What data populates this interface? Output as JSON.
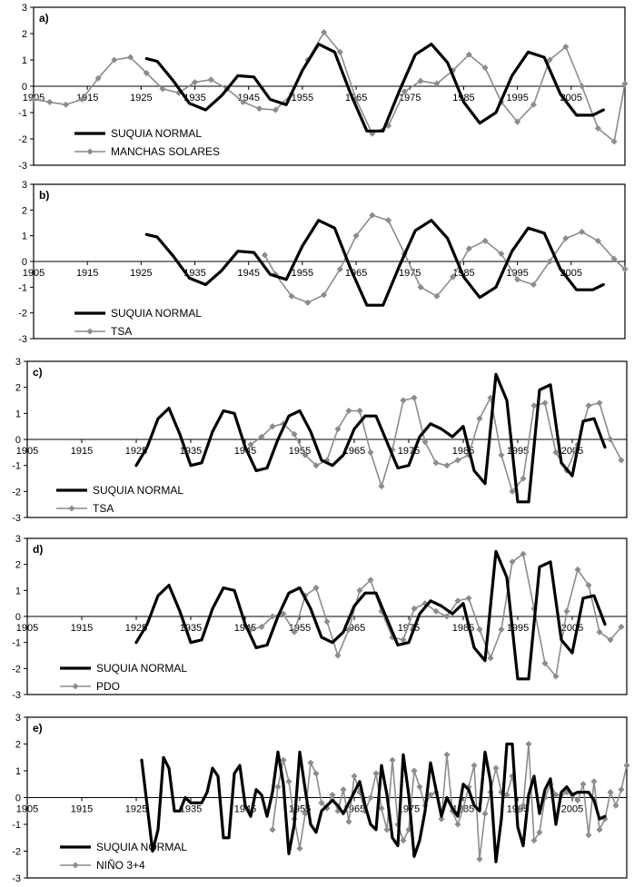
{
  "chart_data": [
    {
      "type": "line",
      "panel_label": "a)",
      "xlim": [
        1905,
        2015
      ],
      "ylim": [
        -3,
        3
      ],
      "yticks": [
        -3,
        -2,
        -1,
        0,
        1,
        2,
        3
      ],
      "xticks": [
        1905,
        1915,
        1925,
        1935,
        1945,
        1955,
        1965,
        1975,
        1985,
        1995,
        2005
      ],
      "legend_position": "bottom-left",
      "series": [
        {
          "name": "SUQUIA NORMAL",
          "style": "thick",
          "color": "#000000",
          "x": [
            1926,
            1928,
            1931,
            1934,
            1937,
            1940,
            1943,
            1946,
            1949,
            1952,
            1955,
            1958,
            1961,
            1964,
            1967,
            1970,
            1973,
            1976,
            1979,
            1982,
            1985,
            1988,
            1991,
            1994,
            1997,
            2000,
            2003,
            2006,
            2009,
            2011
          ],
          "y": [
            1.05,
            0.95,
            0.2,
            -0.65,
            -0.9,
            -0.35,
            0.4,
            0.35,
            -0.5,
            -0.7,
            0.6,
            1.6,
            1.3,
            -0.3,
            -1.7,
            -1.7,
            -0.2,
            1.2,
            1.6,
            0.9,
            -0.6,
            -1.4,
            -1.0,
            0.4,
            1.3,
            1.1,
            -0.3,
            -1.1,
            -1.1,
            -0.9
          ]
        },
        {
          "name": "MANCHAS SOLARES",
          "style": "marker",
          "color": "#8c8c8c",
          "x": [
            1905,
            1908,
            1911,
            1914,
            1917,
            1920,
            1923,
            1926,
            1929,
            1932,
            1935,
            1938,
            1941,
            1944,
            1947,
            1950,
            1953,
            1956,
            1959,
            1962,
            1965,
            1968,
            1971,
            1974,
            1977,
            1980,
            1983,
            1986,
            1989,
            1992,
            1995,
            1998,
            2001,
            2004,
            2007,
            2010,
            2013,
            2015
          ],
          "y": [
            -0.5,
            -0.6,
            -0.7,
            -0.5,
            0.3,
            1.0,
            1.1,
            0.5,
            -0.1,
            -0.25,
            0.15,
            0.25,
            -0.1,
            -0.6,
            -0.85,
            -0.9,
            -0.3,
            1.0,
            2.05,
            1.3,
            -0.5,
            -1.8,
            -1.5,
            -0.2,
            0.2,
            0.1,
            0.6,
            1.2,
            0.7,
            -0.6,
            -1.35,
            -0.7,
            1.0,
            1.5,
            0.0,
            -1.6,
            -2.1,
            0.1
          ]
        }
      ]
    },
    {
      "type": "line",
      "panel_label": "b)",
      "xlim": [
        1905,
        2015
      ],
      "ylim": [
        -3,
        3
      ],
      "yticks": [
        -3,
        -2,
        -1,
        0,
        1,
        2,
        3
      ],
      "xticks": [
        1905,
        1915,
        1925,
        1935,
        1945,
        1955,
        1965,
        1975,
        1985,
        1995,
        2005
      ],
      "legend_position": "bottom-left",
      "series": [
        {
          "name": "SUQUIA NORMAL",
          "style": "thick",
          "color": "#000000",
          "x": [
            1926,
            1928,
            1931,
            1934,
            1937,
            1940,
            1943,
            1946,
            1949,
            1952,
            1955,
            1958,
            1961,
            1964,
            1967,
            1970,
            1973,
            1976,
            1979,
            1982,
            1985,
            1988,
            1991,
            1994,
            1997,
            2000,
            2003,
            2006,
            2009,
            2011
          ],
          "y": [
            1.05,
            0.95,
            0.2,
            -0.65,
            -0.9,
            -0.35,
            0.4,
            0.35,
            -0.5,
            -0.7,
            0.6,
            1.6,
            1.3,
            -0.3,
            -1.7,
            -1.7,
            -0.2,
            1.2,
            1.6,
            0.9,
            -0.6,
            -1.4,
            -1.0,
            0.4,
            1.3,
            1.1,
            -0.3,
            -1.1,
            -1.1,
            -0.9
          ]
        },
        {
          "name": "TSA",
          "style": "marker",
          "color": "#8c8c8c",
          "x": [
            1948,
            1950,
            1953,
            1956,
            1959,
            1962,
            1965,
            1968,
            1971,
            1974,
            1977,
            1980,
            1983,
            1986,
            1989,
            1992,
            1995,
            1998,
            2001,
            2004,
            2007,
            2010,
            2013,
            2015
          ],
          "y": [
            0.25,
            -0.5,
            -1.35,
            -1.6,
            -1.3,
            -0.3,
            1.0,
            1.8,
            1.6,
            0.3,
            -1.0,
            -1.35,
            -0.6,
            0.5,
            0.8,
            0.3,
            -0.7,
            -0.9,
            0.0,
            0.9,
            1.15,
            0.8,
            0.1,
            -0.3
          ]
        }
      ]
    },
    {
      "type": "line",
      "panel_label": "c)",
      "xlim": [
        1905,
        2015
      ],
      "ylim": [
        -3,
        3
      ],
      "yticks": [
        -3,
        -2,
        -1,
        0,
        1,
        2,
        3
      ],
      "xticks": [
        1905,
        1915,
        1925,
        1935,
        1945,
        1955,
        1965,
        1975,
        1985,
        1995,
        2005
      ],
      "legend_position": "bottom-left",
      "series": [
        {
          "name": "SUQUIA NORMAL",
          "style": "thick",
          "color": "#000000",
          "x": [
            1925,
            1927,
            1929,
            1931,
            1933,
            1935,
            1937,
            1939,
            1941,
            1943,
            1945,
            1947,
            1949,
            1951,
            1953,
            1955,
            1957,
            1959,
            1961,
            1963,
            1965,
            1967,
            1969,
            1971,
            1973,
            1975,
            1977,
            1979,
            1981,
            1983,
            1985,
            1987,
            1989,
            1991,
            1993,
            1995,
            1997,
            1999,
            2001,
            2003,
            2005,
            2007,
            2009,
            2011
          ],
          "y": [
            -1.0,
            -0.3,
            0.8,
            1.2,
            0.2,
            -1.0,
            -0.9,
            0.3,
            1.1,
            1.0,
            -0.3,
            -1.2,
            -1.1,
            0.0,
            0.9,
            1.1,
            0.3,
            -0.8,
            -1.0,
            -0.6,
            0.4,
            0.9,
            0.9,
            -0.1,
            -1.1,
            -1.0,
            0.1,
            0.6,
            0.4,
            0.1,
            0.5,
            -1.2,
            -1.7,
            2.5,
            1.5,
            -2.4,
            -2.4,
            1.9,
            2.1,
            -0.9,
            -1.4,
            0.7,
            0.8,
            -0.3
          ]
        },
        {
          "name": "TSA",
          "style": "marker",
          "color": "#8c8c8c",
          "x": [
            1946,
            1948,
            1950,
            1952,
            1954,
            1956,
            1958,
            1960,
            1962,
            1964,
            1966,
            1968,
            1970,
            1972,
            1974,
            1976,
            1978,
            1980,
            1982,
            1984,
            1986,
            1988,
            1990,
            1992,
            1994,
            1996,
            1998,
            2000,
            2002,
            2004,
            2006,
            2008,
            2010,
            2012,
            2014
          ],
          "y": [
            -0.2,
            0.1,
            0.5,
            0.6,
            0.2,
            -0.6,
            -1.0,
            -0.8,
            0.4,
            1.1,
            1.1,
            -0.5,
            -1.8,
            -0.4,
            1.5,
            1.6,
            -0.1,
            -0.9,
            -1.0,
            -0.8,
            -0.6,
            0.8,
            1.6,
            -0.6,
            -2.0,
            -1.5,
            1.3,
            1.4,
            -0.5,
            -1.2,
            -0.2,
            1.3,
            1.4,
            0.0,
            -0.8
          ]
        }
      ]
    },
    {
      "type": "line",
      "panel_label": "d)",
      "xlim": [
        1905,
        2015
      ],
      "ylim": [
        -3,
        3
      ],
      "yticks": [
        -3,
        -2,
        -1,
        0,
        1,
        2,
        3
      ],
      "xticks": [
        1905,
        1915,
        1925,
        1935,
        1945,
        1955,
        1965,
        1975,
        1985,
        1995,
        2005
      ],
      "legend_position": "bottom-left",
      "series": [
        {
          "name": "SUQUIA NORMAL",
          "style": "thick",
          "color": "#000000",
          "x": [
            1925,
            1927,
            1929,
            1931,
            1933,
            1935,
            1937,
            1939,
            1941,
            1943,
            1945,
            1947,
            1949,
            1951,
            1953,
            1955,
            1957,
            1959,
            1961,
            1963,
            1965,
            1967,
            1969,
            1971,
            1973,
            1975,
            1977,
            1979,
            1981,
            1983,
            1985,
            1987,
            1989,
            1991,
            1993,
            1995,
            1997,
            1999,
            2001,
            2003,
            2005,
            2007,
            2009,
            2011
          ],
          "y": [
            -1.0,
            -0.3,
            0.8,
            1.2,
            0.2,
            -1.0,
            -0.9,
            0.3,
            1.1,
            1.0,
            -0.3,
            -1.2,
            -1.1,
            0.0,
            0.9,
            1.1,
            0.3,
            -0.8,
            -1.0,
            -0.6,
            0.4,
            0.9,
            0.9,
            -0.1,
            -1.1,
            -1.0,
            0.1,
            0.6,
            0.4,
            0.1,
            0.5,
            -1.2,
            -1.7,
            2.5,
            1.5,
            -2.4,
            -2.4,
            1.9,
            2.1,
            -0.9,
            -1.4,
            0.7,
            0.8,
            -0.3
          ]
        },
        {
          "name": "PDO",
          "style": "marker",
          "color": "#8c8c8c",
          "x": [
            1946,
            1948,
            1950,
            1952,
            1954,
            1956,
            1958,
            1960,
            1962,
            1964,
            1966,
            1968,
            1970,
            1972,
            1974,
            1976,
            1978,
            1980,
            1982,
            1984,
            1986,
            1988,
            1990,
            1992,
            1994,
            1996,
            1998,
            2000,
            2002,
            2004,
            2006,
            2008,
            2010,
            2012,
            2014
          ],
          "y": [
            -0.5,
            -0.4,
            0.0,
            0.1,
            -0.6,
            0.8,
            1.1,
            -0.2,
            -1.5,
            -0.5,
            1.0,
            1.4,
            0.2,
            -0.8,
            -0.9,
            0.3,
            0.5,
            0.2,
            0.0,
            0.6,
            0.7,
            -0.5,
            -1.6,
            -0.5,
            2.1,
            2.4,
            0.3,
            -1.8,
            -2.3,
            0.2,
            1.8,
            1.2,
            -0.6,
            -0.9,
            -0.4
          ]
        }
      ]
    },
    {
      "type": "line",
      "panel_label": "e)",
      "xlim": [
        1905,
        2015
      ],
      "ylim": [
        -3,
        3
      ],
      "yticks": [
        -3,
        -2,
        -1,
        0,
        1,
        2,
        3
      ],
      "xticks": [
        1905,
        1915,
        1925,
        1935,
        1945,
        1955,
        1965,
        1975,
        1985,
        1995,
        2005
      ],
      "legend_position": "bottom-left",
      "series": [
        {
          "name": "SUQUIA NORMAL",
          "style": "thick",
          "color": "#000000",
          "x": [
            1926,
            1927,
            1928,
            1929,
            1930,
            1931,
            1932,
            1933,
            1934,
            1935,
            1936,
            1937,
            1938,
            1939,
            1940,
            1941,
            1942,
            1943,
            1944,
            1945,
            1946,
            1947,
            1948,
            1949,
            1950,
            1951,
            1952,
            1953,
            1954,
            1955,
            1956,
            1957,
            1958,
            1959,
            1960,
            1961,
            1962,
            1963,
            1964,
            1965,
            1966,
            1967,
            1968,
            1969,
            1970,
            1971,
            1972,
            1973,
            1974,
            1975,
            1976,
            1977,
            1978,
            1979,
            1980,
            1981,
            1982,
            1983,
            1984,
            1985,
            1986,
            1987,
            1988,
            1989,
            1990,
            1991,
            1992,
            1993,
            1994,
            1995,
            1996,
            1997,
            1998,
            1999,
            2000,
            2001,
            2002,
            2003,
            2004,
            2005,
            2006,
            2007,
            2008,
            2009,
            2010,
            2011
          ],
          "y": [
            1.4,
            -0.3,
            -2.0,
            -1.2,
            1.5,
            1.1,
            -0.5,
            -0.5,
            0.0,
            -0.2,
            -0.2,
            -0.2,
            0.2,
            1.1,
            0.8,
            -1.5,
            -1.5,
            0.9,
            1.2,
            -0.3,
            -0.7,
            0.3,
            0.1,
            -0.7,
            0.2,
            1.7,
            0.5,
            -2.1,
            -1.0,
            1.7,
            0.3,
            -1.0,
            -1.3,
            -0.5,
            -0.3,
            -0.1,
            -0.3,
            -0.6,
            -0.2,
            0.2,
            0.6,
            -0.3,
            -1.0,
            -1.2,
            1.2,
            0.1,
            -1.5,
            -1.8,
            1.6,
            0.1,
            -2.2,
            -1.6,
            -0.5,
            1.3,
            0.3,
            -0.7,
            0.0,
            -0.4,
            -0.7,
            0.5,
            0.3,
            -0.3,
            -0.5,
            1.7,
            0.6,
            -2.4,
            -0.8,
            2.0,
            2.0,
            -1.1,
            -1.8,
            0.1,
            0.8,
            -0.6,
            0.3,
            0.7,
            -1.0,
            0.2,
            0.4,
            0.1,
            0.2,
            0.2,
            0.2,
            -0.1,
            -0.8,
            -0.7
          ]
        },
        {
          "name": "NIÑO 3+4",
          "style": "marker",
          "color": "#8c8c8c",
          "x": [
            1950,
            1951,
            1952,
            1953,
            1954,
            1955,
            1956,
            1957,
            1958,
            1959,
            1960,
            1961,
            1962,
            1963,
            1964,
            1965,
            1966,
            1967,
            1968,
            1969,
            1970,
            1971,
            1972,
            1973,
            1974,
            1975,
            1976,
            1977,
            1978,
            1979,
            1980,
            1981,
            1982,
            1983,
            1984,
            1985,
            1986,
            1987,
            1988,
            1989,
            1990,
            1991,
            1992,
            1993,
            1994,
            1995,
            1996,
            1997,
            1998,
            1999,
            2000,
            2001,
            2002,
            2003,
            2004,
            2005,
            2006,
            2007,
            2008,
            2009,
            2010,
            2011,
            2012,
            2013,
            2014,
            2015
          ],
          "y": [
            -1.2,
            0.4,
            1.4,
            0.6,
            -0.8,
            -1.9,
            -0.6,
            1.3,
            0.9,
            -0.2,
            -0.4,
            0.1,
            -0.5,
            0.3,
            -0.9,
            0.8,
            0.2,
            -0.5,
            0.0,
            0.9,
            -0.4,
            -1.2,
            1.4,
            -1.0,
            -1.6,
            -1.2,
            1.0,
            0.4,
            -0.3,
            0.1,
            0.2,
            -0.8,
            1.6,
            -0.5,
            -1.0,
            -0.4,
            0.4,
            1.2,
            -2.3,
            -0.6,
            0.2,
            1.1,
            0.2,
            0.1,
            0.8,
            -0.5,
            -0.3,
            2.0,
            -1.6,
            -1.3,
            0.0,
            0.5,
            0.1,
            0.1,
            0.2,
            0.1,
            -0.1,
            0.5,
            -1.4,
            0.6,
            -1.2,
            -0.8,
            0.2,
            -0.3,
            0.3,
            1.2
          ]
        }
      ]
    }
  ]
}
